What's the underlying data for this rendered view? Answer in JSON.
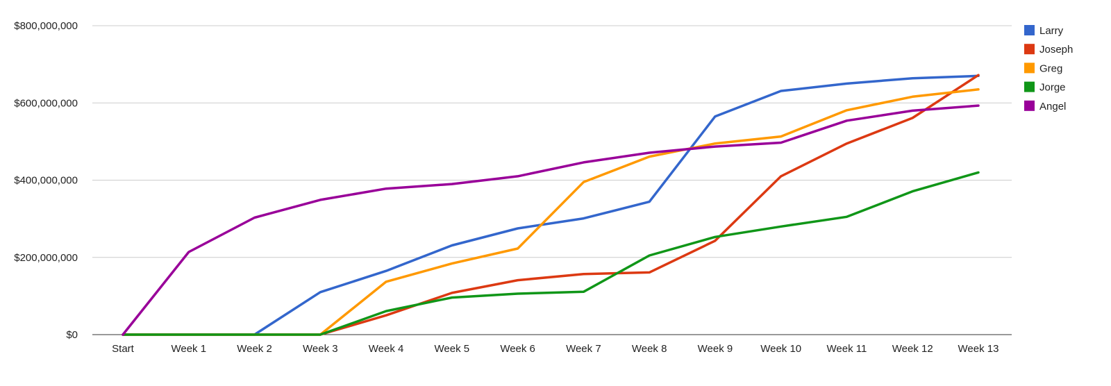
{
  "chart_data": {
    "type": "line",
    "categories": [
      "Start",
      "Week 1",
      "Week 2",
      "Week 3",
      "Week 4",
      "Week 5",
      "Week 6",
      "Week 7",
      "Week 8",
      "Week 9",
      "Week 10",
      "Week 11",
      "Week 12",
      "Week 13"
    ],
    "ylim": [
      0,
      800000000
    ],
    "yticks": [
      {
        "value": 0,
        "label": "$0"
      },
      {
        "value": 200000000,
        "label": "$200,000,000"
      },
      {
        "value": 400000000,
        "label": "$400,000,000"
      },
      {
        "value": 600000000,
        "label": "$600,000,000"
      },
      {
        "value": 800000000,
        "label": "$800,000,000"
      }
    ],
    "grid": true,
    "legend_position": "right",
    "series": [
      {
        "name": "Larry",
        "color": "#3366cc",
        "values": [
          0,
          0,
          0,
          110000000,
          165000000,
          231000000,
          275000000,
          301000000,
          344000000,
          565000000,
          631000000,
          650000000,
          664000000,
          670000000
        ]
      },
      {
        "name": "Joseph",
        "color": "#dc3912",
        "values": [
          0,
          0,
          0,
          0,
          50000000,
          108000000,
          141000000,
          157000000,
          161000000,
          243000000,
          410000000,
          495000000,
          561000000,
          672000000
        ]
      },
      {
        "name": "Greg",
        "color": "#ff9900",
        "values": [
          0,
          0,
          0,
          0,
          137000000,
          184000000,
          223000000,
          395000000,
          461000000,
          495000000,
          513000000,
          581000000,
          616000000,
          635000000
        ]
      },
      {
        "name": "Jorge",
        "color": "#109618",
        "values": [
          0,
          0,
          0,
          0,
          61000000,
          96000000,
          106000000,
          111000000,
          205000000,
          253000000,
          280000000,
          305000000,
          371000000,
          420000000
        ]
      },
      {
        "name": "Angel",
        "color": "#990099",
        "values": [
          0,
          214000000,
          303000000,
          349000000,
          378000000,
          390000000,
          410000000,
          446000000,
          471000000,
          487000000,
          497000000,
          554000000,
          580000000,
          593000000
        ]
      }
    ]
  }
}
